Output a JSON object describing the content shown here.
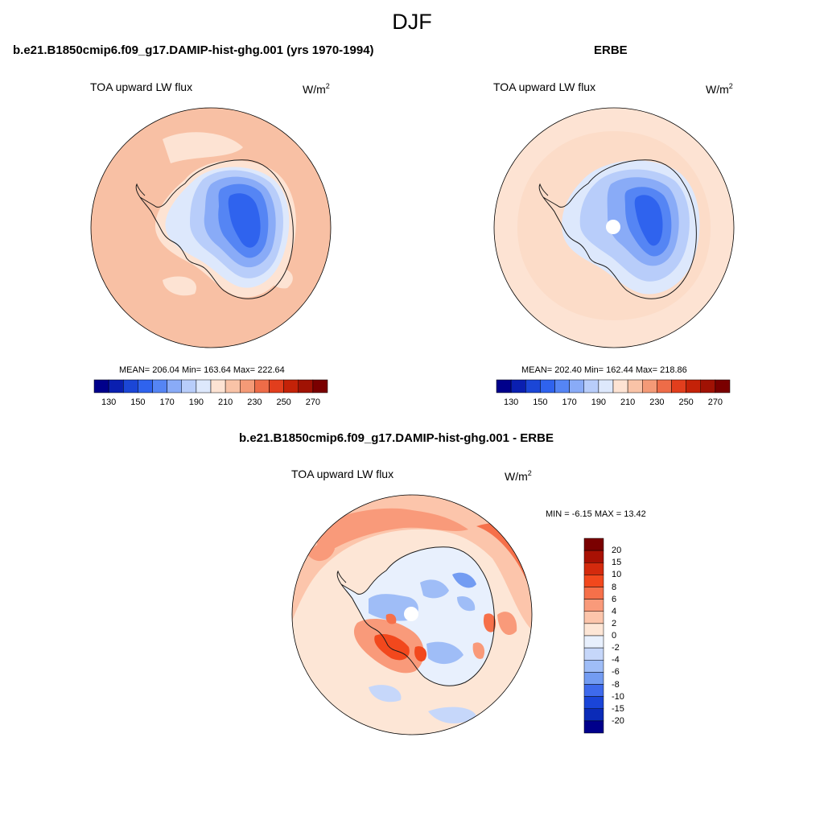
{
  "figure": {
    "title": "DJF"
  },
  "panel_model": {
    "title": "b.e21.B1850cmip6.f09_g17.DAMIP-hist-ghg.001 (yrs 1970-1994)",
    "variable": "TOA upward LW flux",
    "units_base": "W/m",
    "units_exp": "2",
    "stats": "MEAN= 206.04  Min= 163.64  Max= 222.64",
    "colorbar_ticks": [
      "130",
      "150",
      "170",
      "190",
      "210",
      "230",
      "250",
      "270"
    ]
  },
  "panel_obs": {
    "title": "ERBE",
    "variable": "TOA upward LW flux",
    "units_base": "W/m",
    "units_exp": "2",
    "stats": "MEAN= 202.40  Min= 162.44  Max= 218.86",
    "colorbar_ticks": [
      "130",
      "150",
      "170",
      "190",
      "210",
      "230",
      "250",
      "270"
    ]
  },
  "panel_diff": {
    "title": "b.e21.B1850cmip6.f09_g17.DAMIP-hist-ghg.001 - ERBE",
    "variable": "TOA upward LW flux",
    "units": "W/m",
    "units_exp": "2",
    "minmax": "MIN =  -6.15 MAX =  13.42",
    "colorbar_ticks": [
      "20",
      "15",
      "10",
      "8",
      "6",
      "4",
      "2",
      "0",
      "-2",
      "-4",
      "-6",
      "-8",
      "-10",
      "-15",
      "-20"
    ]
  },
  "colors": {
    "abs_scale": [
      "#00008b",
      "#0a1fb0",
      "#1b46d6",
      "#2f63ee",
      "#5585f4",
      "#89abf7",
      "#b8cdfa",
      "#dde8fc",
      "#fde3d3",
      "#f9c3a7",
      "#f49a77",
      "#ee6c48",
      "#e23e1d",
      "#c42208",
      "#a01204",
      "#7a0000"
    ],
    "diff_scale": [
      "#7a0000",
      "#a81104",
      "#d42a0d",
      "#f2481d",
      "#f6704a",
      "#f99a7a",
      "#fcc5ab",
      "#fde6d6",
      "#e8f0fd",
      "#c6d7fa",
      "#9fbdf7",
      "#739cf2",
      "#3e6aec",
      "#1a45d8",
      "#0b2bb8",
      "#00008b"
    ],
    "ocean_model": "#f8c0a4",
    "ocean_obs": "#fcdcc8",
    "land_line": "#1a1a1a"
  },
  "chart_data": {
    "type": "heatmap",
    "projection": "south polar stereographic",
    "season": "DJF",
    "panels": [
      {
        "name": "b.e21.B1850cmip6.f09_g17.DAMIP-hist-ghg.001 (yrs 1970-1994)",
        "variable": "TOA upward LW flux",
        "units": "W/m2",
        "mean": 206.04,
        "min": 163.64,
        "max": 222.64,
        "levels": [
          130,
          140,
          150,
          160,
          170,
          180,
          190,
          200,
          210,
          220,
          230,
          240,
          250,
          260,
          270
        ]
      },
      {
        "name": "ERBE",
        "variable": "TOA upward LW flux",
        "units": "W/m2",
        "mean": 202.4,
        "min": 162.44,
        "max": 218.86,
        "levels": [
          130,
          140,
          150,
          160,
          170,
          180,
          190,
          200,
          210,
          220,
          230,
          240,
          250,
          260,
          270
        ]
      },
      {
        "name": "b.e21.B1850cmip6.f09_g17.DAMIP-hist-ghg.001 - ERBE",
        "variable": "TOA upward LW flux",
        "units": "W/m2",
        "min": -6.15,
        "max": 13.42,
        "levels": [
          -20,
          -15,
          -10,
          -8,
          -6,
          -4,
          -2,
          0,
          2,
          4,
          6,
          8,
          10,
          15,
          20
        ]
      }
    ]
  }
}
